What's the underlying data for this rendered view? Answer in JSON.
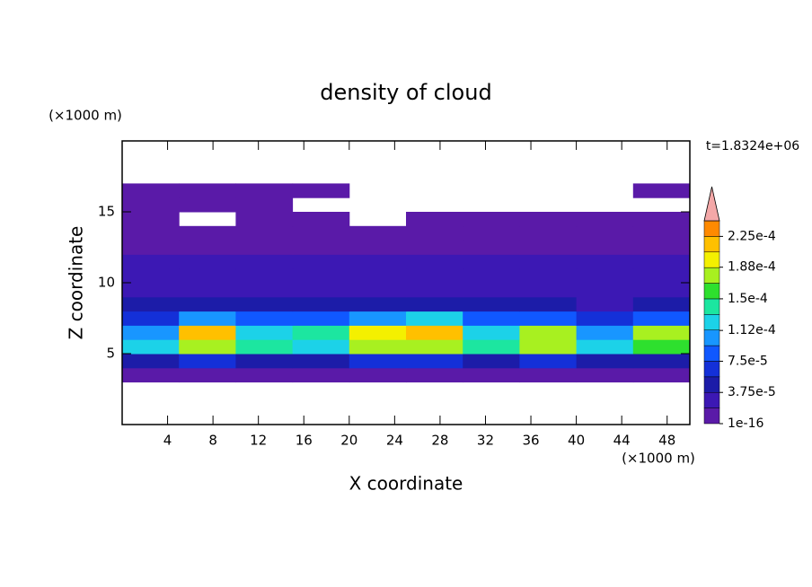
{
  "chart_data": {
    "type": "contour",
    "title": "density of cloud",
    "x_label": "X coordinate",
    "y_label": "Z coordinate",
    "x_unit": "(×1000 m)",
    "y_unit": "(×1000 m)",
    "time_label": "t=1.8324e+06",
    "xlim": [
      0,
      50
    ],
    "xticks": [
      4,
      8,
      12,
      16,
      20,
      24,
      28,
      32,
      36,
      40,
      44,
      48
    ],
    "ylim": [
      0,
      20
    ],
    "yticks": [
      5,
      10,
      15
    ],
    "x": [
      2.5,
      7.5,
      12.5,
      17.5,
      22.5,
      27.5,
      32.5,
      37.5,
      42.5,
      47.5
    ],
    "y": [
      3.5,
      4.5,
      5.5,
      6.5,
      7.5,
      8.5,
      9.5,
      10.5,
      11.5,
      12.5,
      13.5,
      14.5,
      15.5,
      16.5
    ],
    "z": [
      [
        1e-05,
        1e-05,
        1e-05,
        1e-05,
        1e-05,
        1e-05,
        1e-05,
        1e-05,
        1e-05,
        1e-05
      ],
      [
        5e-05,
        6e-05,
        5e-05,
        5e-05,
        6e-05,
        6e-05,
        5e-05,
        6e-05,
        5e-05,
        5e-05
      ],
      [
        0.00013,
        0.00018,
        0.00014,
        0.00013,
        0.00017,
        0.00018,
        0.00014,
        0.00017,
        0.00012,
        0.00016
      ],
      [
        0.00011,
        0.00021,
        0.00013,
        0.00014,
        0.00019,
        0.00022,
        0.00012,
        0.00018,
        0.0001,
        0.00017
      ],
      [
        7e-05,
        0.0001,
        8e-05,
        8e-05,
        0.00011,
        0.00012,
        8e-05,
        9e-05,
        6e-05,
        8e-05
      ],
      [
        4e-05,
        5e-05,
        4e-05,
        4e-05,
        5e-05,
        5e-05,
        4e-05,
        4e-05,
        3e-05,
        4e-05
      ],
      [
        3e-05,
        3e-05,
        3e-05,
        3e-05,
        3e-05,
        3e-05,
        3e-05,
        3e-05,
        3e-05,
        3e-05
      ],
      [
        2.5e-05,
        2.5e-05,
        2.5e-05,
        2.5e-05,
        2.5e-05,
        2.5e-05,
        2.5e-05,
        2.5e-05,
        2.5e-05,
        2.5e-05
      ],
      [
        2e-05,
        2e-05,
        2e-05,
        2e-05,
        2e-05,
        2e-05,
        2e-05,
        2e-05,
        2e-05,
        2e-05
      ],
      [
        1.5e-05,
        1.5e-05,
        1.5e-05,
        1.5e-05,
        1.5e-05,
        1.5e-05,
        1.5e-05,
        1.5e-05,
        1.5e-05,
        1.5e-05
      ],
      [
        1e-05,
        1e-05,
        1e-05,
        1e-05,
        1e-05,
        1e-05,
        1e-05,
        1e-05,
        1e-05,
        1e-05
      ],
      [
        1e-05,
        null,
        5e-06,
        1e-05,
        null,
        1e-05,
        5e-06,
        5e-06,
        5e-06,
        5e-06
      ],
      [
        5e-06,
        5e-06,
        5e-06,
        null,
        null,
        null,
        null,
        null,
        null,
        null
      ],
      [
        5e-06,
        5e-06,
        5e-06,
        5e-06,
        null,
        null,
        null,
        null,
        null,
        5e-06
      ]
    ],
    "colorbar": {
      "levels": [
        1e-16,
        1.875e-05,
        3.75e-05,
        5.625e-05,
        7.5e-05,
        9.375e-05,
        0.0001125,
        0.00013125,
        0.00015,
        0.00016875,
        0.0001875,
        0.00020625,
        0.000225,
        0.00024375
      ],
      "colors": [
        "#5a1aa8",
        "#3c18b4",
        "#1c1ca8",
        "#1430d8",
        "#1058ff",
        "#1896ff",
        "#1cd2e8",
        "#1ce6a0",
        "#2ee02e",
        "#a8f020",
        "#f4f000",
        "#ffc000",
        "#ff8a00",
        "#ff3820"
      ],
      "extend_color": "#f4a8a8",
      "ticks": [
        {
          "value": 1e-16,
          "label": "1e-16"
        },
        {
          "value": 3.75e-05,
          "label": "3.75e-5"
        },
        {
          "value": 7.5e-05,
          "label": "7.5e-5"
        },
        {
          "value": 0.000112,
          "label": "1.12e-4"
        },
        {
          "value": 0.00015,
          "label": "1.5e-4"
        },
        {
          "value": 0.000188,
          "label": "1.88e-4"
        },
        {
          "value": 0.000225,
          "label": "2.25e-4"
        }
      ]
    }
  }
}
